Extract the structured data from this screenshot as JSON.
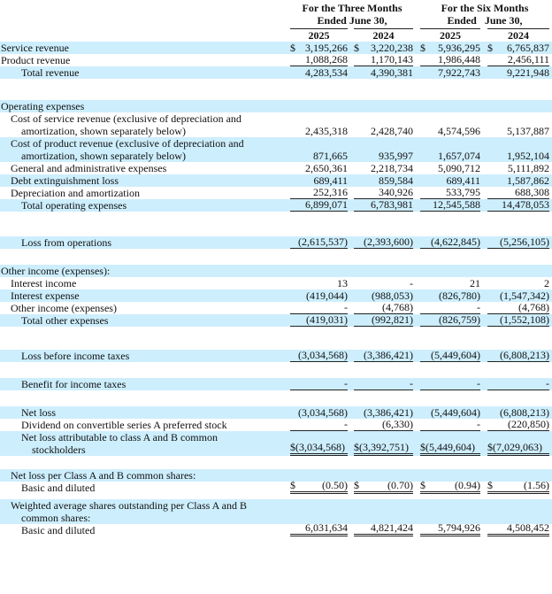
{
  "header": {
    "three_months_line1": "For the Three Months",
    "three_months_line2": "Ended June 30,",
    "six_months_line1": "For the Six Months",
    "six_months_line2": "Ended   June 30,",
    "years": [
      "2025",
      "2024",
      "2025",
      "2024"
    ]
  },
  "colors": {
    "shading": "#cdeefd"
  },
  "sections": [
    {
      "rows": [
        {
          "label": [
            "Service revenue"
          ],
          "indent": 0,
          "values": [
            {
              "cur": "$",
              "val": "3,195,266"
            },
            {
              "cur": "$",
              "val": "3,220,238"
            },
            {
              "cur": "$",
              "val": "5,936,295"
            },
            {
              "cur": "$",
              "val": "6,765,837"
            }
          ]
        },
        {
          "label": [
            "Product revenue"
          ],
          "indent": 0,
          "rule": "single",
          "values": [
            {
              "val": "1,088,268"
            },
            {
              "val": "1,170,143"
            },
            {
              "val": "1,986,448"
            },
            {
              "val": "2,456,111"
            }
          ]
        },
        {
          "label": [
            "Total revenue"
          ],
          "indent": 2,
          "values": [
            {
              "val": "4,283,534"
            },
            {
              "val": "4,390,381"
            },
            {
              "val": "7,922,743"
            },
            {
              "val": "9,221,948"
            }
          ]
        }
      ]
    },
    {
      "rows": [
        {
          "label": [
            "Operating expenses"
          ],
          "indent": 0,
          "values": []
        },
        {
          "label": [
            "Cost of service revenue (exclusive of depreciation and",
            "amortization, shown separately below)"
          ],
          "indent": 1,
          "values": [
            {
              "val": "2,435,318"
            },
            {
              "val": "2,428,740"
            },
            {
              "val": "4,574,596"
            },
            {
              "val": "5,137,887"
            }
          ]
        },
        {
          "label": [
            "Cost of product revenue (exclusive of depreciation and",
            "amortization, shown separately below)"
          ],
          "indent": 1,
          "values": [
            {
              "val": "871,665"
            },
            {
              "val": "935,997"
            },
            {
              "val": "1,657,074"
            },
            {
              "val": "1,952,104"
            }
          ]
        },
        {
          "label": [
            "General and administrative expenses"
          ],
          "indent": 1,
          "values": [
            {
              "val": "2,650,361"
            },
            {
              "val": "2,218,734"
            },
            {
              "val": "5,090,712"
            },
            {
              "val": "5,111,892"
            }
          ]
        },
        {
          "label": [
            "Debt extinguishment loss"
          ],
          "indent": 1,
          "values": [
            {
              "val": "689,411"
            },
            {
              "val": "859,584"
            },
            {
              "val": "689,411"
            },
            {
              "val": "1,587,862"
            }
          ]
        },
        {
          "label": [
            "Depreciation and amortization"
          ],
          "indent": 1,
          "rule": "single",
          "values": [
            {
              "val": "252,316"
            },
            {
              "val": "340,926"
            },
            {
              "val": "533,795"
            },
            {
              "val": "688,308"
            }
          ]
        },
        {
          "label": [
            "Total operating expenses"
          ],
          "indent": 2,
          "rule": "single",
          "values": [
            {
              "val": "6,899,071"
            },
            {
              "val": "6,783,981"
            },
            {
              "val": "12,545,588"
            },
            {
              "val": "14,478,053"
            }
          ]
        }
      ]
    },
    {
      "rows": [
        {
          "label": [
            "Loss from operations"
          ],
          "indent": 2,
          "rule": "single",
          "values": [
            {
              "val": "(2,615,537)"
            },
            {
              "val": "(2,393,600)"
            },
            {
              "val": "(4,622,845)"
            },
            {
              "val": "(5,256,105)"
            }
          ]
        }
      ]
    },
    {
      "rows": [
        {
          "label": [
            "Other income (expenses):"
          ],
          "indent": 0,
          "values": []
        },
        {
          "label": [
            "Interest income"
          ],
          "indent": 1,
          "values": [
            {
              "val": "13"
            },
            {
              "val": "-"
            },
            {
              "val": "21"
            },
            {
              "val": "2"
            }
          ]
        },
        {
          "label": [
            "Interest expense"
          ],
          "indent": 1,
          "values": [
            {
              "val": "(419,044)"
            },
            {
              "val": "(988,053)"
            },
            {
              "val": "(826,780)"
            },
            {
              "val": "(1,547,342)"
            }
          ]
        },
        {
          "label": [
            "Other income (expenses)"
          ],
          "indent": 1,
          "rule": "single",
          "values": [
            {
              "val": "-"
            },
            {
              "val": "(4,768)"
            },
            {
              "val": "-"
            },
            {
              "val": "(4,768)"
            }
          ]
        },
        {
          "label": [
            "Total other expenses"
          ],
          "indent": 2,
          "rule": "single",
          "values": [
            {
              "val": "(419,031)"
            },
            {
              "val": "(992,821)"
            },
            {
              "val": "(826,759)"
            },
            {
              "val": "(1,552,108)"
            }
          ]
        }
      ]
    },
    {
      "rows": [
        {
          "label": [
            "Loss before income taxes"
          ],
          "indent": 2,
          "rule": "single",
          "values": [
            {
              "val": "(3,034,568)"
            },
            {
              "val": "(3,386,421)"
            },
            {
              "val": "(5,449,604)"
            },
            {
              "val": "(6,808,213)"
            }
          ]
        }
      ]
    },
    {
      "rows": [
        {
          "label": [
            "Benefit for income taxes"
          ],
          "indent": 2,
          "rule": "single",
          "values": [
            {
              "val": "-"
            },
            {
              "val": "-"
            },
            {
              "val": "-"
            },
            {
              "val": "-"
            }
          ]
        }
      ]
    },
    {
      "rows": [
        {
          "label": [
            "Net loss"
          ],
          "indent": 2,
          "values": [
            {
              "val": "(3,034,568)"
            },
            {
              "val": "(3,386,421)"
            },
            {
              "val": "(5,449,604)"
            },
            {
              "val": "(6,808,213)"
            }
          ]
        },
        {
          "label": [
            "Dividend on convertible series A preferred stock"
          ],
          "indent": 2,
          "rule": "single",
          "values": [
            {
              "val": "-"
            },
            {
              "val": "(6,330)"
            },
            {
              "val": "-"
            },
            {
              "val": "(220,850)"
            }
          ]
        },
        {
          "label": [
            "Net loss attributable to class A and B common",
            "stockholders"
          ],
          "indent": 2,
          "rule": "double",
          "values": [
            {
              "cur": "$",
              "val": "(3,034,568)"
            },
            {
              "cur": "$",
              "val": "(3,392,751)"
            },
            {
              "cur": "$",
              "val": "(5,449,604)"
            },
            {
              "cur": "$",
              "val": "(7,029,063)"
            }
          ]
        }
      ]
    },
    {
      "rows": [
        {
          "label": [
            "Net loss per Class A and B common shares:"
          ],
          "indent": 1,
          "values": []
        },
        {
          "label": [
            "Basic and diluted"
          ],
          "indent": 2,
          "rule": "double",
          "values": [
            {
              "cur": "$",
              "val": "(0.50)"
            },
            {
              "cur": "$",
              "val": "(0.70)"
            },
            {
              "cur": "$",
              "val": "(0.94)"
            },
            {
              "cur": "$",
              "val": "(1.56)"
            }
          ]
        }
      ]
    },
    {
      "rows": [
        {
          "label": [
            "Weighted average shares outstanding per Class A and B",
            "common shares:"
          ],
          "indent": 1,
          "values": []
        },
        {
          "label": [
            "Basic and diluted"
          ],
          "indent": 2,
          "rule": "double",
          "values": [
            {
              "val": "6,031,634"
            },
            {
              "val": "4,821,424"
            },
            {
              "val": "5,794,926"
            },
            {
              "val": "4,508,452"
            }
          ]
        }
      ]
    }
  ]
}
